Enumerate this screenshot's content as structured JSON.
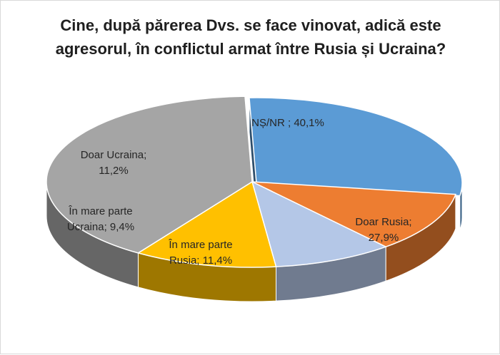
{
  "chart_data": {
    "type": "pie",
    "variant": "3d",
    "title": "Cine, după părerea Dvs. se face vinovat, adică este agresorul, în conflictul armat între Rusia și Ucraina?",
    "slices": [
      {
        "label": "Doar Rusia",
        "value": 27.9,
        "display": [
          "Doar Rusia;",
          "27,9%"
        ],
        "color": "#5b9bd5",
        "exploded": true
      },
      {
        "label": "În mare parte Rusia",
        "value": 11.4,
        "display": [
          "În mare parte",
          "Rusia; 11,4%"
        ],
        "color": "#ed7d31",
        "exploded": false
      },
      {
        "label": "În mare parte Ucraina",
        "value": 9.4,
        "display": [
          "În mare parte",
          "Ucraina; 9,4%"
        ],
        "color": "#b4c7e7",
        "exploded": false
      },
      {
        "label": "Doar Ucraina",
        "value": 11.2,
        "display": [
          "Doar Ucraina;",
          "11,2%"
        ],
        "color": "#ffc000",
        "exploded": false
      },
      {
        "label": "NȘ/NR",
        "value": 40.1,
        "display": [
          "NȘ/NR ; 40,1%"
        ],
        "color": "#a5a5a5",
        "exploded": false
      }
    ],
    "legend": "none",
    "data_labels": "category; value"
  }
}
